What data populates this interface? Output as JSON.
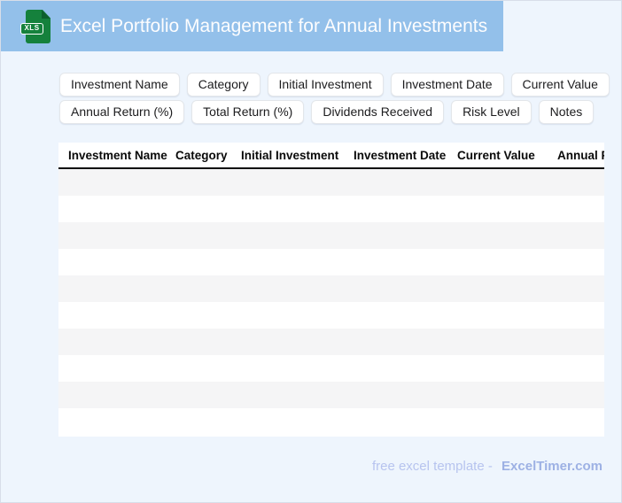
{
  "header": {
    "title": "Excel Portfolio Management for Annual Investments",
    "file_icon_label": "XLS"
  },
  "chips": [
    "Investment Name",
    "Category",
    "Initial Investment",
    "Investment Date",
    "Current Value",
    "Annual Return (%)",
    "Total Return (%)",
    "Dividends Received",
    "Risk Level",
    "Notes"
  ],
  "table": {
    "columns": [
      "Investment Name",
      "Category",
      "Initial Investment",
      "Investment Date",
      "Current Value",
      "Annual Return (%)"
    ],
    "row_count": 10,
    "rows_empty": true
  },
  "footer": {
    "credit": "free excel template -",
    "brand": "ExcelTimer.com"
  },
  "colors": {
    "banner_blue": "#93C0EA",
    "excel_green": "#15813C",
    "excel_green_dark": "#0C5F2C",
    "page_bg": "#EEF5FD",
    "page_border": "#D8DEE9",
    "chip_border": "#E3E6EA",
    "stripe_gray": "#F5F5F6",
    "header_line": "#0D0D0D",
    "footer_text": "#B7C4EF",
    "footer_brand": "#9DB1E4"
  }
}
